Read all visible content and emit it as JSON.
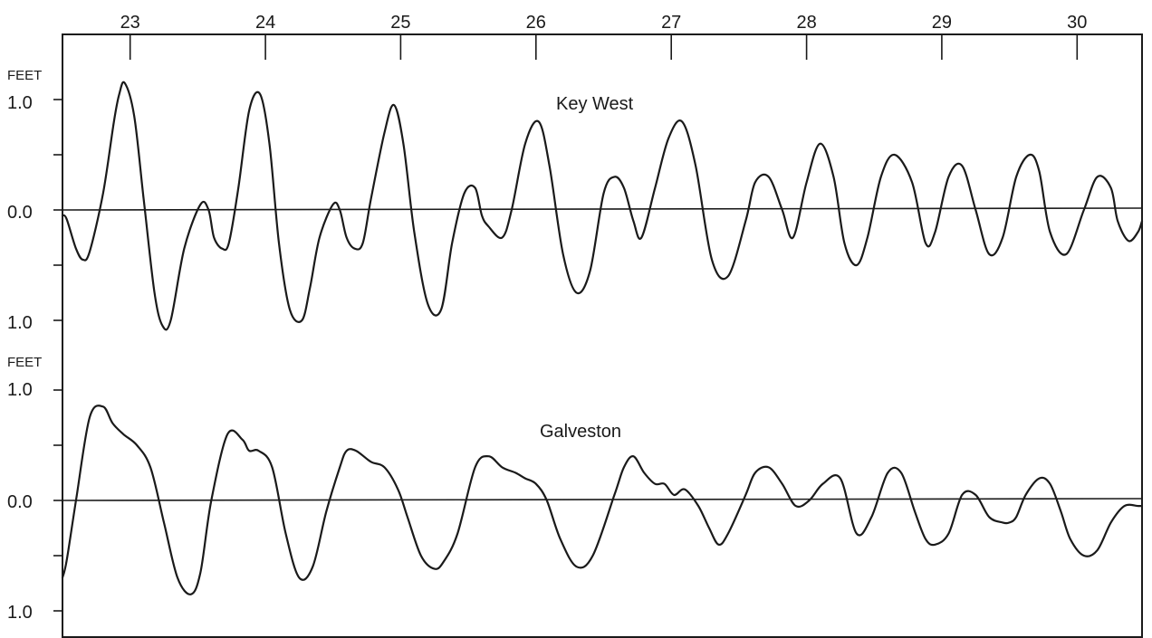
{
  "chart_data": {
    "type": "line",
    "title": "",
    "xlabel": "",
    "x_tick_labels": [
      "23",
      "24",
      "25",
      "26",
      "27",
      "28",
      "29",
      "30"
    ],
    "x_tick_values": [
      23,
      24,
      25,
      26,
      27,
      28,
      29,
      30
    ],
    "xlim": [
      22.5,
      30.48
    ],
    "grid": false,
    "panels": [
      {
        "station": "Key West",
        "unit": "FEET",
        "y_tick_labels": [
          "1.0",
          "0.0",
          "1.0"
        ],
        "y_tick_values": [
          1.0,
          0.0,
          -1.0
        ],
        "ylim": [
          -1.15,
          1.45
        ],
        "series": [
          {
            "name": "Key West",
            "x": [
              22.5,
              22.53,
              22.6,
              22.65,
              22.7,
              22.8,
              22.88,
              22.92,
              22.96,
              23.03,
              23.1,
              23.18,
              23.24,
              23.3,
              23.4,
              23.52,
              23.58,
              23.62,
              23.68,
              23.73,
              23.8,
              23.88,
              23.96,
              24.03,
              24.1,
              24.18,
              24.27,
              24.33,
              24.4,
              24.5,
              24.55,
              24.6,
              24.66,
              24.72,
              24.78,
              24.88,
              24.95,
              25.02,
              25.1,
              25.2,
              25.3,
              25.38,
              25.47,
              25.55,
              25.6,
              25.65,
              25.75,
              25.82,
              25.92,
              26.02,
              26.1,
              26.2,
              26.3,
              26.4,
              26.5,
              26.58,
              26.65,
              26.72,
              26.78,
              26.88,
              26.98,
              27.08,
              27.18,
              27.3,
              27.42,
              27.55,
              27.62,
              27.72,
              27.82,
              27.9,
              28.0,
              28.1,
              28.2,
              28.28,
              28.37,
              28.45,
              28.55,
              28.65,
              28.78,
              28.88,
              28.95,
              29.05,
              29.15,
              29.25,
              29.35,
              29.45,
              29.55,
              29.65,
              29.72,
              29.8,
              29.92,
              30.05,
              30.15,
              30.25,
              30.3,
              30.38,
              30.45,
              30.48
            ],
            "values": [
              -0.05,
              -0.08,
              -0.35,
              -0.45,
              -0.38,
              0.15,
              0.8,
              1.05,
              1.15,
              0.85,
              0.1,
              -0.75,
              -1.05,
              -1.0,
              -0.35,
              0.05,
              0.0,
              -0.25,
              -0.35,
              -0.3,
              0.2,
              0.9,
              1.05,
              0.6,
              -0.3,
              -0.9,
              -1.0,
              -0.7,
              -0.25,
              0.05,
              0.0,
              -0.25,
              -0.35,
              -0.3,
              0.1,
              0.7,
              0.95,
              0.6,
              -0.2,
              -0.85,
              -0.9,
              -0.3,
              0.15,
              0.2,
              -0.05,
              -0.15,
              -0.25,
              0.0,
              0.6,
              0.8,
              0.4,
              -0.4,
              -0.75,
              -0.55,
              0.15,
              0.3,
              0.2,
              -0.1,
              -0.25,
              0.2,
              0.65,
              0.8,
              0.4,
              -0.45,
              -0.6,
              -0.1,
              0.25,
              0.3,
              0.0,
              -0.25,
              0.25,
              0.6,
              0.3,
              -0.3,
              -0.5,
              -0.25,
              0.3,
              0.5,
              0.25,
              -0.3,
              -0.2,
              0.3,
              0.4,
              0.0,
              -0.4,
              -0.25,
              0.3,
              0.5,
              0.35,
              -0.2,
              -0.4,
              0.0,
              0.3,
              0.2,
              -0.1,
              -0.28,
              -0.2,
              -0.1
            ]
          }
        ]
      },
      {
        "station": "Galveston",
        "unit": "FEET",
        "y_tick_labels": [
          "1.0",
          "0.0",
          "1.0"
        ],
        "y_tick_values": [
          1.0,
          0.0,
          -1.0
        ],
        "ylim": [
          -1.2,
          1.2
        ],
        "series": [
          {
            "name": "Galveston",
            "x": [
              22.5,
              22.53,
              22.6,
              22.7,
              22.8,
              22.87,
              22.95,
              23.05,
              23.15,
              23.25,
              23.35,
              23.45,
              23.52,
              23.6,
              23.72,
              23.83,
              23.88,
              23.95,
              24.05,
              24.15,
              24.25,
              24.35,
              24.45,
              24.55,
              24.6,
              24.67,
              24.78,
              24.88,
              24.98,
              25.05,
              25.15,
              25.25,
              25.32,
              25.42,
              25.55,
              25.65,
              25.75,
              25.85,
              25.92,
              26.0,
              26.08,
              26.18,
              26.3,
              26.42,
              26.58,
              26.65,
              26.72,
              26.8,
              26.88,
              26.95,
              27.02,
              27.1,
              27.2,
              27.28,
              27.35,
              27.42,
              27.55,
              27.62,
              27.72,
              27.82,
              27.92,
              28.02,
              28.12,
              28.25,
              28.37,
              28.48,
              28.6,
              28.7,
              28.8,
              28.88,
              28.95,
              29.05,
              29.15,
              29.25,
              29.35,
              29.45,
              29.5,
              29.55,
              29.62,
              29.72,
              29.8,
              29.88,
              29.95,
              30.05,
              30.15,
              30.25,
              30.35,
              30.45,
              30.48
            ],
            "values": [
              -0.7,
              -0.55,
              0.0,
              0.75,
              0.85,
              0.7,
              0.6,
              0.5,
              0.3,
              -0.2,
              -0.7,
              -0.85,
              -0.65,
              0.0,
              0.6,
              0.55,
              0.45,
              0.45,
              0.3,
              -0.3,
              -0.7,
              -0.6,
              -0.1,
              0.3,
              0.45,
              0.45,
              0.35,
              0.3,
              0.1,
              -0.15,
              -0.5,
              -0.62,
              -0.55,
              -0.3,
              0.3,
              0.4,
              0.3,
              0.25,
              0.2,
              0.15,
              0.0,
              -0.35,
              -0.6,
              -0.5,
              0.05,
              0.3,
              0.4,
              0.25,
              0.15,
              0.15,
              0.05,
              0.1,
              -0.05,
              -0.25,
              -0.4,
              -0.3,
              0.05,
              0.25,
              0.3,
              0.15,
              -0.05,
              0.0,
              0.15,
              0.2,
              -0.3,
              -0.15,
              0.25,
              0.25,
              -0.1,
              -0.35,
              -0.4,
              -0.3,
              0.05,
              0.05,
              -0.15,
              -0.2,
              -0.2,
              -0.15,
              0.05,
              0.2,
              0.15,
              -0.1,
              -0.35,
              -0.5,
              -0.45,
              -0.2,
              -0.05,
              -0.05,
              -0.05
            ]
          }
        ]
      }
    ]
  }
}
